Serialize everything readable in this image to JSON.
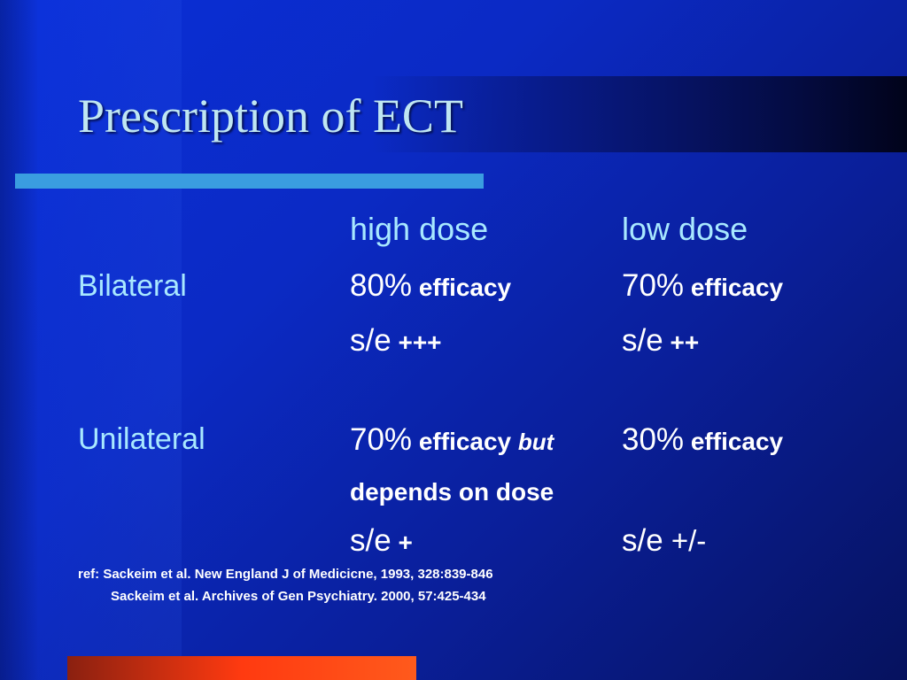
{
  "slide": {
    "title": "Prescription of ECT",
    "columns": {
      "high": "high dose",
      "low": "low dose"
    },
    "bilateral": {
      "label": "Bilateral",
      "high_pct": "80%",
      "high_eff": " efficacy",
      "low_pct": "70%",
      "low_eff": " efficacy",
      "high_se": "s/e",
      "high_se_level": " +++",
      "low_se": "s/e",
      "low_se_level": " ++"
    },
    "unilateral": {
      "label": "Unilateral",
      "high_pct": "70%",
      "high_eff": " efficacy ",
      "high_but": "but",
      "high_depends": "depends on dose",
      "low_pct": "30%",
      "low_eff": " efficacy",
      "high_se": "s/e",
      "high_se_level": " +",
      "low_se": "s/e",
      "low_se_level": " +/-"
    },
    "references": {
      "line1": "ref: Sackeim et al. New England J of Medicicne, 1993, 328:839-846",
      "line2": "Sackeim et al. Archives of Gen Psychiatry. 2000, 57:425-434"
    },
    "colors": {
      "background": "#0b2ac4",
      "title": "#bfe6f2",
      "accent_line": "#3a9de0",
      "bottom_bar": "#ff3a10"
    }
  }
}
